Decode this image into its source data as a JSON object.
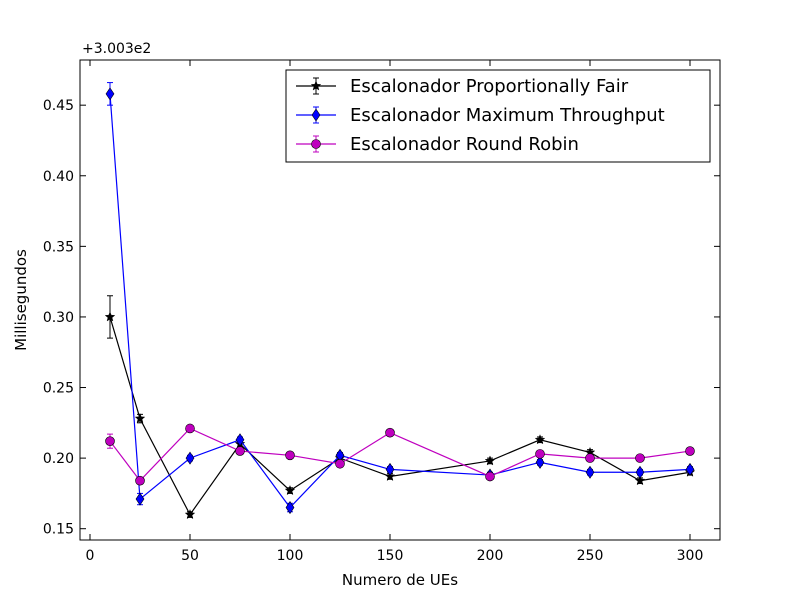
{
  "chart_data": {
    "type": "line",
    "offset_label": "+3.003e2",
    "xlabel": "Numero de UEs",
    "ylabel": "Millisegundos",
    "xlim": [
      -5,
      315
    ],
    "ylim": [
      0.142,
      0.482
    ],
    "xticks": [
      0,
      50,
      100,
      150,
      200,
      250,
      300
    ],
    "yticks": [
      0.15,
      0.2,
      0.25,
      0.3,
      0.35,
      0.4,
      0.45
    ],
    "ytick_labels": [
      "0.15",
      "0.20",
      "0.25",
      "0.30",
      "0.35",
      "0.40",
      "0.45"
    ],
    "legend_position": "top-right",
    "x": [
      10,
      25,
      50,
      75,
      100,
      125,
      150,
      200,
      225,
      250,
      275,
      300
    ],
    "series": [
      {
        "name": "Escalonador Proportionally Fair",
        "color": "#000000",
        "marker": "star",
        "values": [
          0.3,
          0.228,
          0.16,
          0.21,
          0.177,
          0.2,
          0.187,
          0.198,
          0.213,
          0.204,
          0.184,
          0.19
        ],
        "errors": [
          0.015,
          0.003,
          0.002,
          0.002,
          0.002,
          0.002,
          0.002,
          0.002,
          0.002,
          0.002,
          0.002,
          0.002
        ]
      },
      {
        "name": "Escalonador Maximum Throughput",
        "color": "#0000ff",
        "marker": "diamond",
        "values": [
          0.458,
          0.171,
          0.2,
          0.213,
          0.165,
          0.202,
          0.192,
          0.188,
          0.197,
          0.19,
          0.19,
          0.192
        ],
        "errors": [
          0.008,
          0.004,
          0.002,
          0.002,
          0.003,
          0.002,
          0.002,
          0.002,
          0.002,
          0.002,
          0.002,
          0.002
        ]
      },
      {
        "name": "Escalonador Round Robin",
        "color": "#bf00bf",
        "marker": "circle",
        "values": [
          0.212,
          0.184,
          0.221,
          0.205,
          0.202,
          0.196,
          0.218,
          0.187,
          0.203,
          0.2,
          0.2,
          0.205
        ],
        "errors": [
          0.005,
          0.002,
          0.002,
          0.002,
          0.002,
          0.002,
          0.002,
          0.002,
          0.002,
          0.002,
          0.002,
          0.002
        ]
      }
    ]
  }
}
